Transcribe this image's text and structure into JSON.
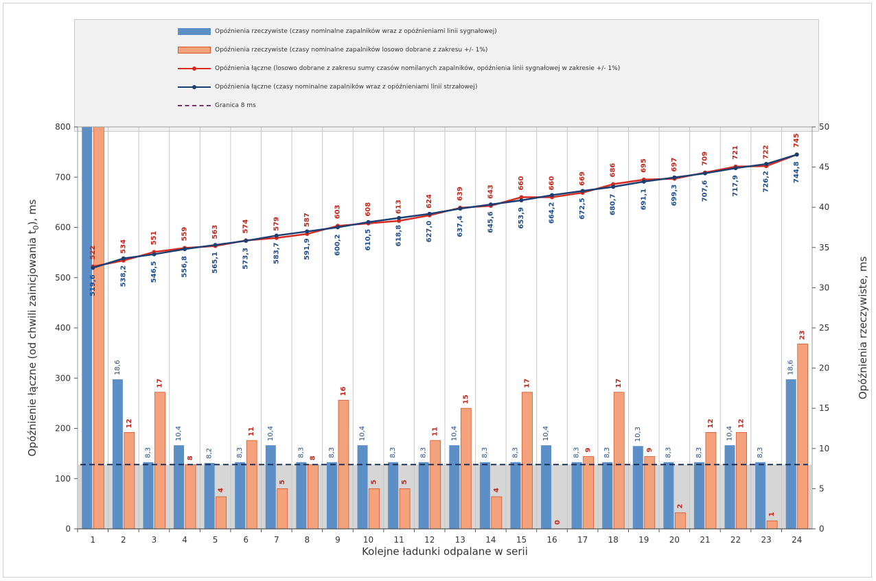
{
  "colors": {
    "blue_bar": "#5b8fc6",
    "blue_bar_edge": "#3e6fa6",
    "orange_bar": "#f4a27c",
    "orange_bar_edge": "#d9552c",
    "red_line": "#d62b1e",
    "navy_line": "#1b3e73",
    "limit_line": "#1b2f5a",
    "shade": "#d6d6d6",
    "grid": "#c8c8c8",
    "blue_label": "#1f4e8c",
    "red_label": "#c0281c"
  },
  "chart_data": {
    "type": "bar",
    "title": "",
    "xlabel": "Kolejne ładunki odpalane w serii",
    "ylabel_left": "Opóźnienie łączne (od chwili zainicjowania t",
    "ylabel_left_sub": "0",
    "ylabel_left_end": "), ms",
    "ylabel_right": "Opóźnienia rzeczywiste, ms",
    "ylim_left": [
      0,
      800
    ],
    "yticks_left": [
      "0",
      "100",
      "200",
      "300",
      "400",
      "500",
      "600",
      "700",
      "800"
    ],
    "ylim_right": [
      0,
      50
    ],
    "yticks_right": [
      "0",
      "5",
      "10",
      "15",
      "20",
      "25",
      "30",
      "35",
      "40",
      "45",
      "50"
    ],
    "categories": [
      "1",
      "2",
      "3",
      "4",
      "5",
      "6",
      "7",
      "8",
      "9",
      "10",
      "11",
      "12",
      "13",
      "14",
      "15",
      "16",
      "17",
      "18",
      "19",
      "20",
      "21",
      "22",
      "23",
      "24"
    ],
    "legend_position": "top",
    "series": [
      {
        "name": "Opóźnienia rzeczywiste (czasy nominalne zapalników wraz z opóźnieniami linii sygnałowej)",
        "kind": "bar",
        "axis": "right",
        "values": [
          null,
          18.6,
          8.3,
          10.4,
          8.2,
          8.3,
          10.4,
          8.3,
          8.3,
          10.4,
          8.3,
          8.3,
          10.4,
          8.3,
          8.3,
          10.4,
          8.3,
          8.3,
          10.3,
          8.3,
          8.3,
          10.4,
          8.3,
          18.6
        ],
        "labels": [
          "",
          "18,6",
          "8,3",
          "10,4",
          "8,2",
          "8,3",
          "10,4",
          "8,3",
          "8,3",
          "10,4",
          "8,3",
          "8,3",
          "10,4",
          "8,3",
          "8,3",
          "10,4",
          "8,3",
          "8,3",
          "10,3",
          "8,3",
          "8,3",
          "10,4",
          "8,3",
          "18,6"
        ],
        "first_bar_exceeds_axis": true
      },
      {
        "name": "Opóźnienia rzeczywiste (czasy nominalne zapalników losowo dobrane z zakresu +/- 1%)",
        "kind": "bar",
        "axis": "right",
        "values": [
          null,
          12,
          17,
          8,
          4,
          11,
          5,
          8,
          16,
          5,
          5,
          11,
          15,
          4,
          17,
          0,
          9,
          17,
          9,
          2,
          12,
          12,
          1,
          23
        ],
        "labels": [
          "",
          "12",
          "17",
          "8",
          "4",
          "11",
          "5",
          "8",
          "16",
          "5",
          "5",
          "11",
          "15",
          "4",
          "17",
          "0",
          "9",
          "17",
          "9",
          "2",
          "12",
          "12",
          "1",
          "23"
        ],
        "first_bar_exceeds_axis": true
      },
      {
        "name": "Opóźnienia łączne (losowo dobrane z zakresu sumy czasów nomilanych zapalników, opóźnienia linii sygnałowej w zakresie +/- 1%)",
        "kind": "line",
        "axis": "left",
        "values": [
          522,
          534,
          551,
          559,
          563,
          574,
          579,
          587,
          603,
          608,
          613,
          624,
          639,
          643,
          660,
          660,
          669,
          686,
          695,
          697,
          709,
          721,
          722,
          745
        ],
        "labels": [
          "522",
          "534",
          "551",
          "559",
          "563",
          "574",
          "579",
          "587",
          "603",
          "608",
          "613",
          "624",
          "639",
          "643",
          "660",
          "660",
          "669",
          "686",
          "695",
          "697",
          "709",
          "721",
          "722",
          "745"
        ]
      },
      {
        "name": "Opóźnienia łączne (czasy nominalne zapalników wraz z opóźnieniami linii strzałowej)",
        "kind": "line",
        "axis": "left",
        "values": [
          519.6,
          538.2,
          546.5,
          556.8,
          565.1,
          573.3,
          583.7,
          591.9,
          600.2,
          610.5,
          618.8,
          627.0,
          637.4,
          645.6,
          653.9,
          664.2,
          672.5,
          680.7,
          691.1,
          699.3,
          707.6,
          717.9,
          726.2,
          744.8
        ],
        "labels": [
          "519,6",
          "538,2",
          "546,5",
          "556,8",
          "565,1",
          "573,3",
          "583,7",
          "591,9",
          "600,2",
          "610,5",
          "618,8",
          "627,0",
          "637,4",
          "645,6",
          "653,9",
          "664,2",
          "672,5",
          "680,7",
          "691,1",
          "699,3",
          "707,6",
          "717,9",
          "726,2",
          "744,8"
        ]
      },
      {
        "name": "Granica 8 ms",
        "kind": "hline",
        "axis": "right",
        "value": 8
      }
    ]
  }
}
